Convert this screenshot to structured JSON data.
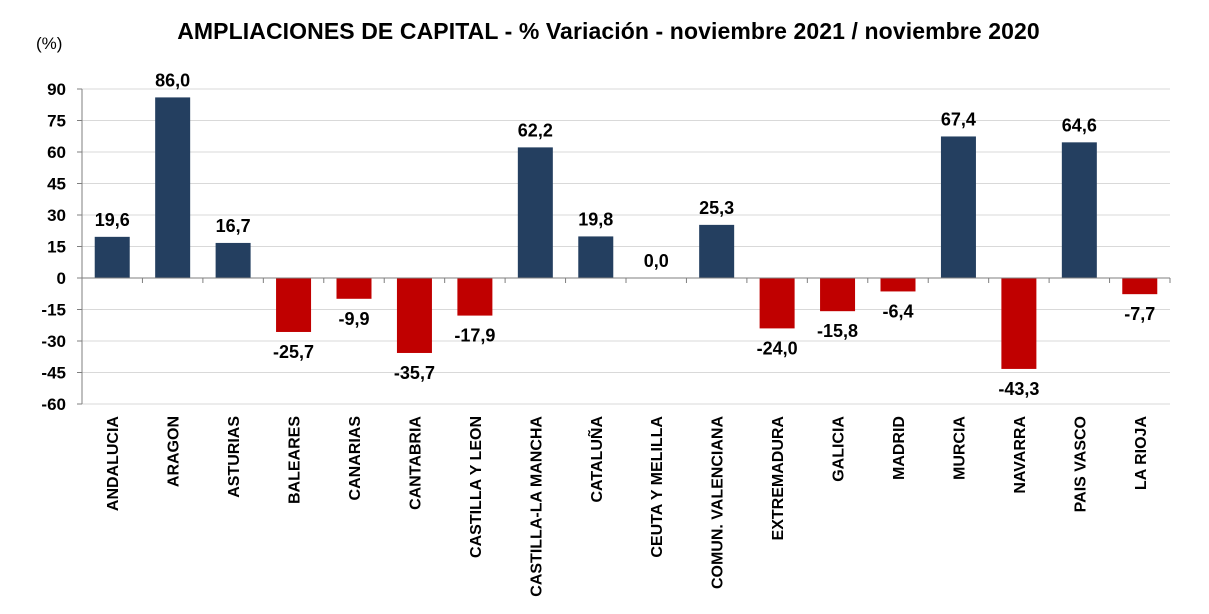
{
  "chart_data": {
    "type": "bar",
    "title": "AMPLIACIONES DE CAPITAL - % Variación  - noviembre 2021 / noviembre 2020",
    "ylabel": "(%)",
    "xlabel": "",
    "ylim": [
      -60,
      90
    ],
    "yticks": [
      90,
      75,
      60,
      45,
      30,
      15,
      0,
      -15,
      -30,
      -45,
      -60
    ],
    "grid": true,
    "legend": "none",
    "categories": [
      "ANDALUCIA",
      "ARAGON",
      "ASTURIAS",
      "BALEARES",
      "CANARIAS",
      "CANTABRIA",
      "CASTILLA Y LEON",
      "CASTILLA-LA MANCHA",
      "CATALUÑA",
      "CEUTA Y MELILLA",
      "COMUN. VALENCIANA",
      "EXTREMADURA",
      "GALICIA",
      "MADRID",
      "MURCIA",
      "NAVARRA",
      "PAIS VASCO",
      "LA RIOJA"
    ],
    "values": [
      19.6,
      86.0,
      16.7,
      -25.7,
      -9.9,
      -35.7,
      -17.9,
      62.2,
      19.8,
      0.0,
      25.3,
      -24.0,
      -15.8,
      -6.4,
      67.4,
      -43.3,
      64.6,
      -7.7
    ],
    "value_labels": [
      "19,6",
      "86,0",
      "16,7",
      "-25,7",
      "-9,9",
      "-35,7",
      "-17,9",
      "62,2",
      "19,8",
      "0,0",
      "25,3",
      "-24,0",
      "-15,8",
      "-6,4",
      "67,4",
      "-43,3",
      "64,6",
      "-7,7"
    ],
    "colors": {
      "positive": "#243F60",
      "negative": "#C00000",
      "grid": "#D9D9D9",
      "axis": "#7F7F7F",
      "text": "#000000"
    }
  }
}
